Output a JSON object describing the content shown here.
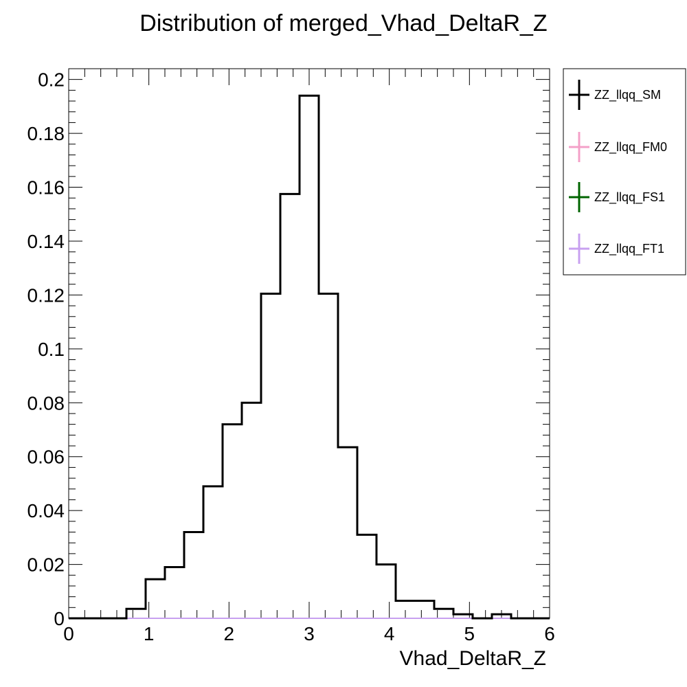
{
  "chart_data": {
    "type": "histogram",
    "title": "Distribution of merged_Vhad_DeltaR_Z",
    "xlabel": "Vhad_DeltaR_Z",
    "ylabel": "",
    "xlim": [
      0,
      6
    ],
    "ylim": [
      0,
      0.204
    ],
    "bin_width": 0.24,
    "x_ticks": [
      0,
      1,
      2,
      3,
      4,
      5,
      6
    ],
    "y_ticks": [
      0,
      0.02,
      0.04,
      0.06,
      0.08,
      0.1,
      0.12,
      0.14,
      0.16,
      0.18,
      0.2
    ],
    "x_tick_labels": [
      "0",
      "1",
      "2",
      "3",
      "4",
      "5",
      "6"
    ],
    "y_tick_labels": [
      "0",
      "0.02",
      "0.04",
      "0.06",
      "0.08",
      "0.1",
      "0.12",
      "0.14",
      "0.16",
      "0.18",
      "0.2"
    ],
    "legend_position": "top-right outside",
    "series": [
      {
        "name": "ZZ_llqq_SM",
        "color": "#000000",
        "values": [
          0,
          0,
          0,
          0.0035,
          0.0145,
          0.019,
          0.032,
          0.049,
          0.072,
          0.08,
          0.1205,
          0.1575,
          0.194,
          0.1205,
          0.0635,
          0.031,
          0.02,
          0.0065,
          0.0065,
          0.0035,
          0.0015,
          0,
          0.0015,
          0,
          0
        ]
      },
      {
        "name": "ZZ_llqq_FM0",
        "color": "#f4a0c8",
        "values": []
      },
      {
        "name": "ZZ_llqq_FS1",
        "color": "#006400",
        "values": []
      },
      {
        "name": "ZZ_llqq_FT1",
        "color": "#c8a0f0",
        "values": []
      }
    ]
  }
}
